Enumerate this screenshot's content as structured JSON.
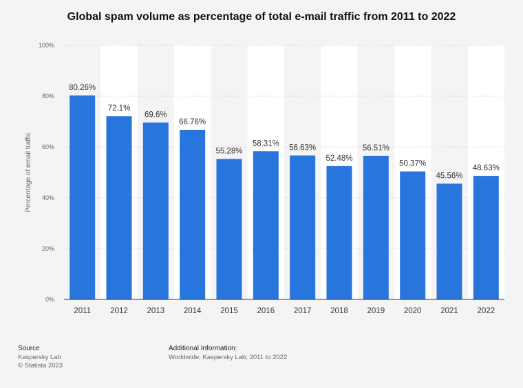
{
  "colors": {
    "bar": "#2876dd",
    "band": "#ffffff",
    "grid": "#d0d0d0",
    "axis": "#333333",
    "label": "#333333",
    "tick": "#666666"
  },
  "chart_data": {
    "type": "bar",
    "title": "Global spam volume as percentage of total e-mail traffic from 2011 to 2022",
    "xlabel": "",
    "ylabel": "Percentage of email traffic",
    "categories": [
      "2011",
      "2012",
      "2013",
      "2014",
      "2015",
      "2016",
      "2017",
      "2018",
      "2019",
      "2020",
      "2021",
      "2022"
    ],
    "values": [
      80.26,
      72.1,
      69.6,
      66.76,
      55.28,
      58.31,
      56.63,
      52.48,
      56.51,
      50.37,
      45.56,
      48.63
    ],
    "value_labels": [
      "80.26%",
      "72.1%",
      "69.6%",
      "66.76%",
      "55.28%",
      "58.31%",
      "56.63%",
      "52.48%",
      "56.51%",
      "50.37%",
      "45.56%",
      "48.63%"
    ],
    "ylim": [
      0,
      100
    ],
    "yticks": [
      0,
      20,
      40,
      60,
      80,
      100
    ],
    "ytick_labels": [
      "0%",
      "20%",
      "40%",
      "60%",
      "80%",
      "100%"
    ],
    "grid": true
  },
  "footer": {
    "source_heading": "Source",
    "source_lines": [
      "Kaspersky Lab",
      "© Statista 2023"
    ],
    "info_heading": "Additional Information:",
    "info_text": "Worldwide; Kaspersky Lab; 2011 to 2022"
  }
}
